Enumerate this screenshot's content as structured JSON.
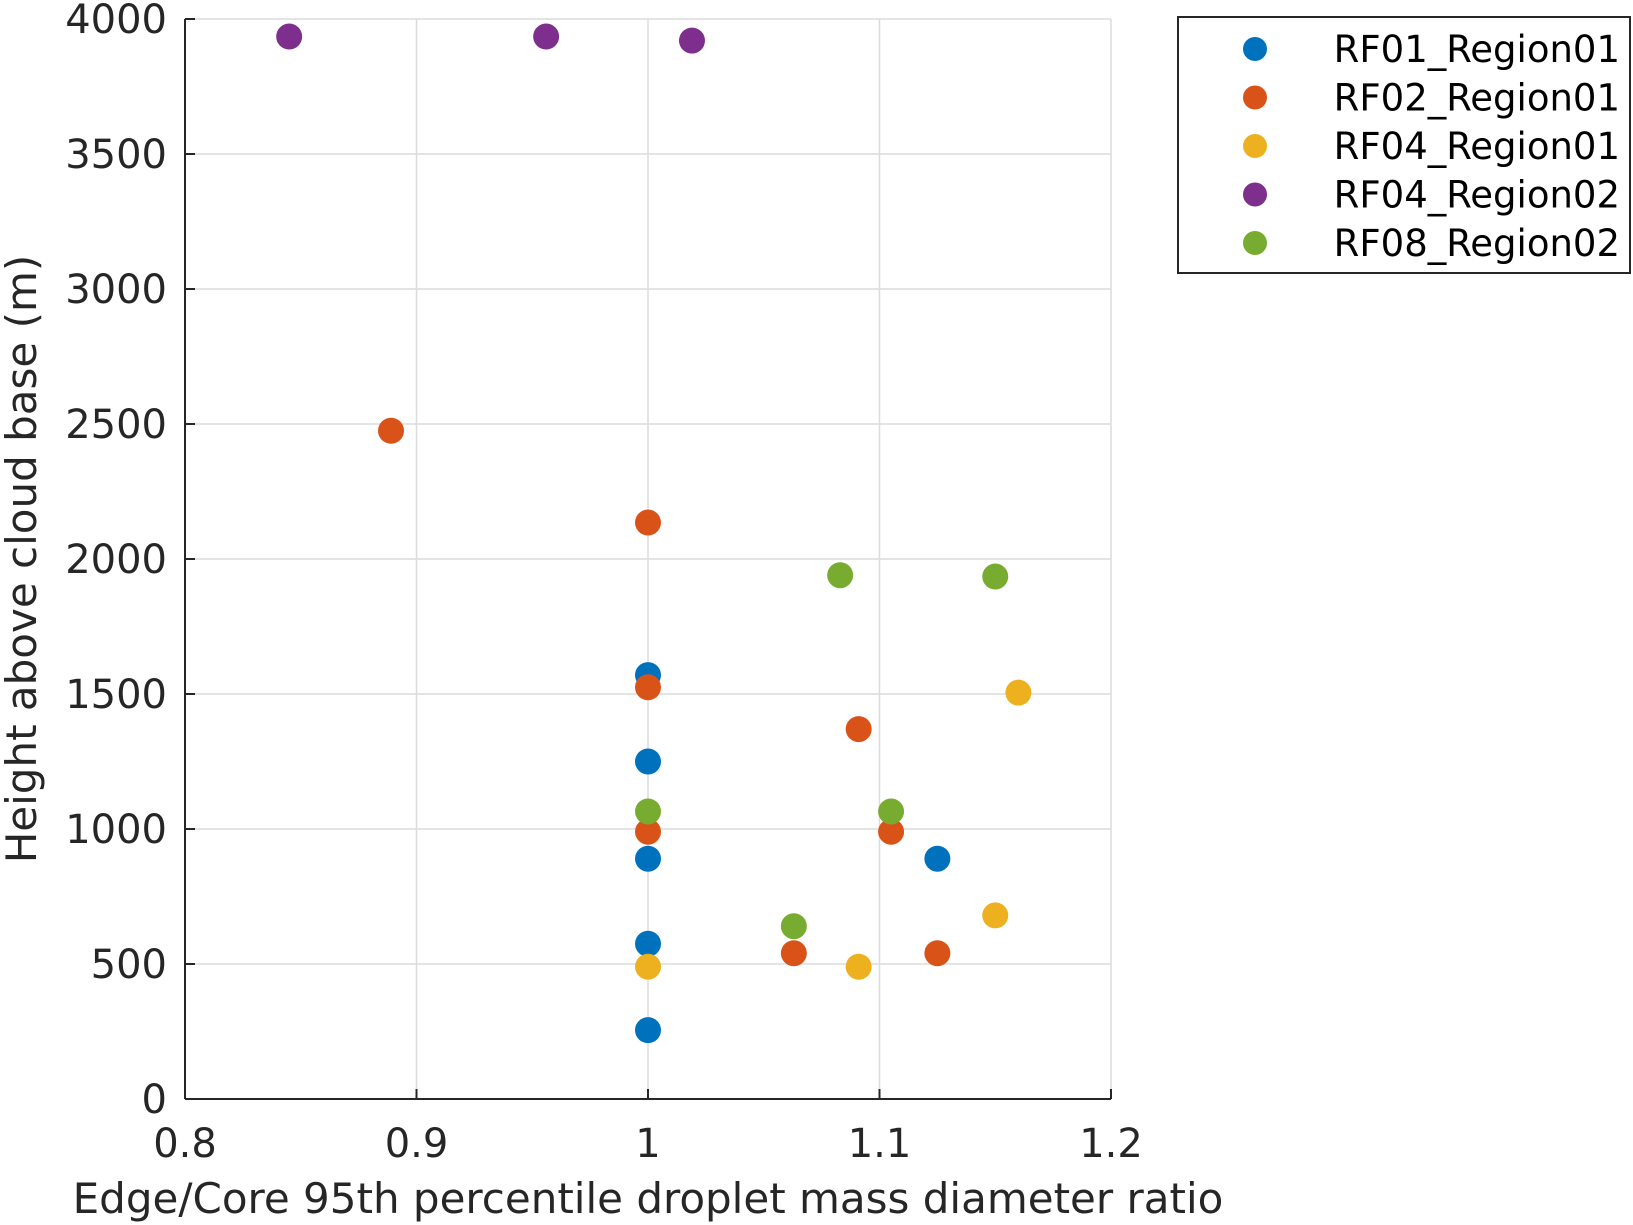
{
  "chart_data": {
    "type": "scatter",
    "xlabel": "Edge/Core 95th percentile droplet mass diameter ratio",
    "ylabel": "Height above cloud base (m)",
    "xlim": [
      0.8,
      1.2
    ],
    "ylim": [
      0,
      4000
    ],
    "xticks": [
      0.8,
      0.9,
      1.0,
      1.1,
      1.2
    ],
    "xtick_labels": [
      "0.8",
      "0.9",
      "1",
      "1.1",
      "1.2"
    ],
    "yticks": [
      0,
      500,
      1000,
      1500,
      2000,
      2500,
      3000,
      3500,
      4000
    ],
    "ytick_labels": [
      "0",
      "500",
      "1000",
      "1500",
      "2000",
      "2500",
      "3000",
      "3500",
      "4000"
    ],
    "grid": true,
    "legend_position": "outside-top-right",
    "series": [
      {
        "name": "RF01_Region01",
        "color": "#0072BD",
        "points": [
          [
            1.0,
            1570
          ],
          [
            1.0,
            1250
          ],
          [
            1.0,
            890
          ],
          [
            1.0,
            575
          ],
          [
            1.0,
            255
          ],
          [
            1.125,
            890
          ]
        ]
      },
      {
        "name": "RF02_Region01",
        "color": "#D95319",
        "points": [
          [
            0.889,
            2475
          ],
          [
            1.0,
            2135
          ],
          [
            1.0,
            1525
          ],
          [
            1.0,
            990
          ],
          [
            1.063,
            540
          ],
          [
            1.091,
            1370
          ],
          [
            1.105,
            990
          ],
          [
            1.125,
            540
          ]
        ]
      },
      {
        "name": "RF04_Region01",
        "color": "#EDB120",
        "points": [
          [
            1.0,
            490
          ],
          [
            1.091,
            490
          ],
          [
            1.15,
            680
          ],
          [
            1.16,
            1505
          ]
        ]
      },
      {
        "name": "RF04_Region02",
        "color": "#7E2F8E",
        "points": [
          [
            0.845,
            3935
          ],
          [
            0.956,
            3935
          ],
          [
            1.019,
            3920
          ]
        ]
      },
      {
        "name": "RF08_Region02",
        "color": "#77AC30",
        "points": [
          [
            1.083,
            1940
          ],
          [
            1.15,
            1935
          ],
          [
            1.0,
            1065
          ],
          [
            1.105,
            1065
          ],
          [
            1.063,
            640
          ]
        ]
      }
    ]
  }
}
